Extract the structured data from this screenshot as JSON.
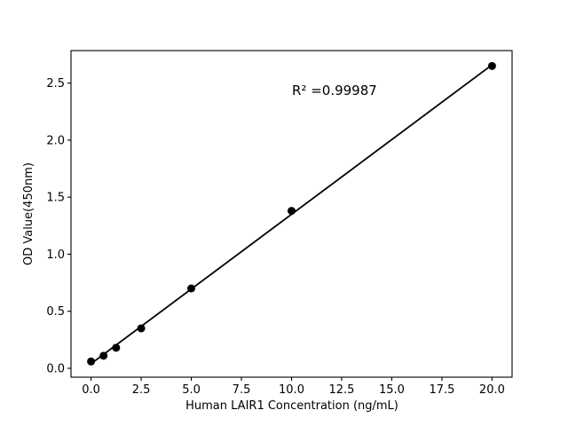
{
  "chart_data": {
    "type": "scatter",
    "title": "",
    "xlabel": "Human LAIR1 Concentration (ng/mL)",
    "ylabel": "OD Value(450nm)",
    "annotation": "R² =0.99987",
    "x": [
      0,
      0.625,
      1.25,
      2.5,
      5,
      10,
      20
    ],
    "y": [
      0.06,
      0.11,
      0.18,
      0.35,
      0.7,
      1.38,
      2.65
    ],
    "fit_line": {
      "x": [
        0,
        20
      ],
      "y": [
        0.04,
        2.66
      ]
    },
    "xlim": [
      -1,
      21
    ],
    "ylim": [
      -0.078,
      2.785
    ],
    "x_ticks": [
      0,
      2.5,
      5,
      7.5,
      10,
      12.5,
      15,
      17.5,
      20
    ],
    "x_tick_labels": [
      "0.0",
      "2.5",
      "5.0",
      "7.5",
      "10.0",
      "12.5",
      "15.0",
      "17.5",
      "20.0"
    ],
    "y_ticks": [
      0,
      0.5,
      1,
      1.5,
      2,
      2.5
    ],
    "y_tick_labels": [
      "0.0",
      "0.5",
      "1.0",
      "1.5",
      "2.0",
      "2.5"
    ],
    "grid": false,
    "legend": null,
    "marker_color": "#000000",
    "line_color": "#000000",
    "axis_color": "#000000",
    "background_color": "#ffffff"
  }
}
